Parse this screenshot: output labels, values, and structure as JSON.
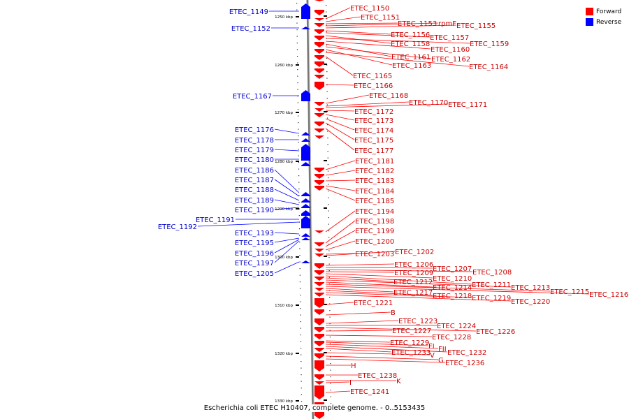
{
  "colors": {
    "forward": "#ff0000",
    "reverse": "#0000ff",
    "axis": "#9a9a9a"
  },
  "caption": "Escherichia coli ETEC H10407, complete genome. - 0..5153435",
  "legend": [
    {
      "label": "Forward",
      "color": "#ff0000"
    },
    {
      "label": "Reverse",
      "color": "#0000ff"
    }
  ],
  "ticks": [
    "1250 kbp",
    "1260 kbp",
    "1270 kbp",
    "1280 kbp",
    "1290 kbp",
    "1300 kbp",
    "1310 kbp",
    "1320 kbp",
    "1330 kbp"
  ],
  "reverse_genes": [
    "ETEC_1149",
    "ETEC_1152",
    "ETEC_1167",
    "ETEC_1176",
    "ETEC_1178",
    "ETEC_1179",
    "ETEC_1180",
    "ETEC_1186",
    "ETEC_1187",
    "ETEC_1188",
    "ETEC_1189",
    "ETEC_1190",
    "ETEC_1191",
    "ETEC_1192",
    "ETEC_1193",
    "ETEC_1195",
    "ETEC_1196",
    "ETEC_1197",
    "ETEC_1205"
  ],
  "forward_genes": [
    "ETEC_1150",
    "ETEC_1151",
    "ETEC_1153",
    "rpmF",
    "ETEC_1155",
    "ETEC_1156",
    "ETEC_1157",
    "ETEC_1158",
    "ETEC_1159",
    "ETEC_1160",
    "ETEC_1161",
    "ETEC_1162",
    "ETEC_1163",
    "ETEC_1164",
    "ETEC_1165",
    "ETEC_1166",
    "ETEC_1168",
    "ETEC_1170",
    "ETEC_1171",
    "ETEC_1172",
    "ETEC_1173",
    "ETEC_1174",
    "ETEC_1175",
    "ETEC_1177",
    "ETEC_1181",
    "ETEC_1182",
    "ETEC_1183",
    "ETEC_1184",
    "ETEC_1185",
    "ETEC_1194",
    "ETEC_1198",
    "ETEC_1199",
    "ETEC_1200",
    "ETEC_1203",
    "ETEC_1202",
    "ETEC_1206",
    "ETEC_1207",
    "ETEC_1208",
    "ETEC_1209",
    "ETEC_1210",
    "ETEC_1211",
    "ETEC_1212",
    "ETEC_1213",
    "ETEC_1214",
    "ETEC_1215",
    "ETEC_1216",
    "ETEC_1217",
    "ETEC_1218",
    "ETEC_1219",
    "ETEC_1220",
    "ETEC_1221",
    "B",
    "ETEC_1223",
    "ETEC_1224",
    "ETEC_1226",
    "ETEC_1227",
    "ETEC_1228",
    "ETEC_1229",
    "FI",
    "FII",
    "ETEC_1232",
    "ETEC_1233",
    "V",
    "G",
    "ETEC_1236",
    "H",
    "ETEC_1238",
    "K",
    "I",
    "ETEC_1241"
  ]
}
